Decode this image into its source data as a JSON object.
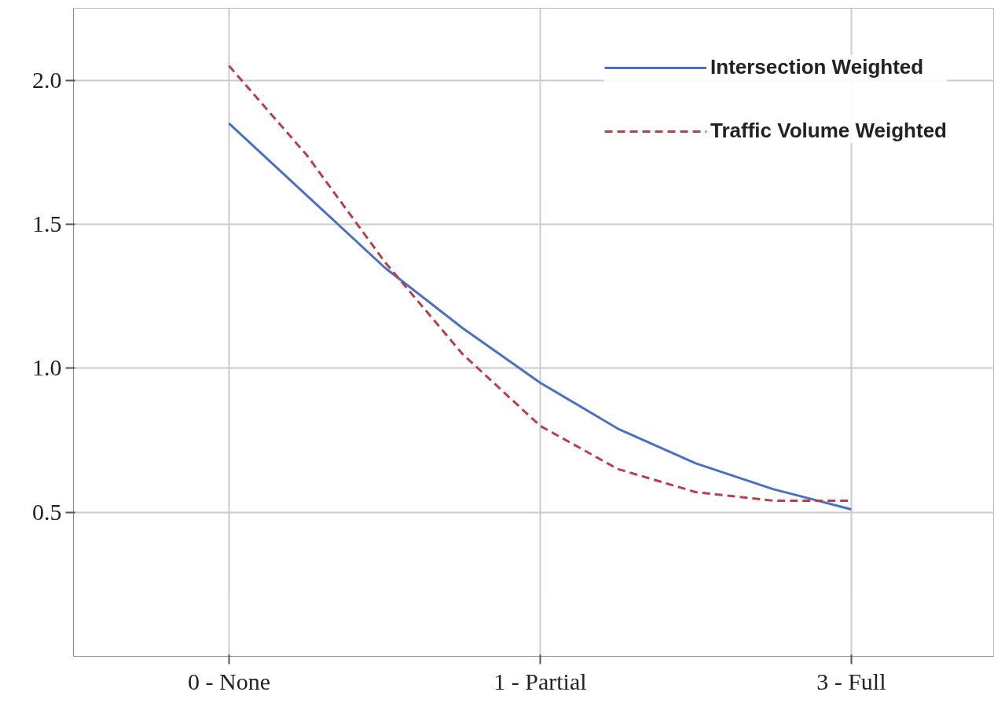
{
  "chart_data": {
    "type": "line",
    "categories": [
      "0 - None",
      null,
      null,
      null,
      "1 - Partial",
      null,
      null,
      null,
      "3 - Full"
    ],
    "series": [
      {
        "name": "Intersection Weighted",
        "color": "#4a6fc4",
        "line_style": "solid",
        "values": [
          1.85,
          1.6,
          1.35,
          1.14,
          0.95,
          0.79,
          0.67,
          0.58,
          0.51
        ]
      },
      {
        "name": "Traffic Volume Weighted",
        "color": "#b9404a",
        "line_style": "dashed",
        "values": [
          2.05,
          1.74,
          1.37,
          1.05,
          0.8,
          0.65,
          0.57,
          0.54,
          0.54
        ]
      }
    ],
    "ylim": [
      0,
      2.25
    ],
    "yticks": [
      {
        "value": 0.5,
        "label": "0.5"
      },
      {
        "value": 1.0,
        "label": "1.0"
      },
      {
        "value": 1.5,
        "label": "1.5"
      },
      {
        "value": 2.0,
        "label": "2.0"
      }
    ],
    "grid": true,
    "legend": "top right",
    "marker": "none"
  }
}
